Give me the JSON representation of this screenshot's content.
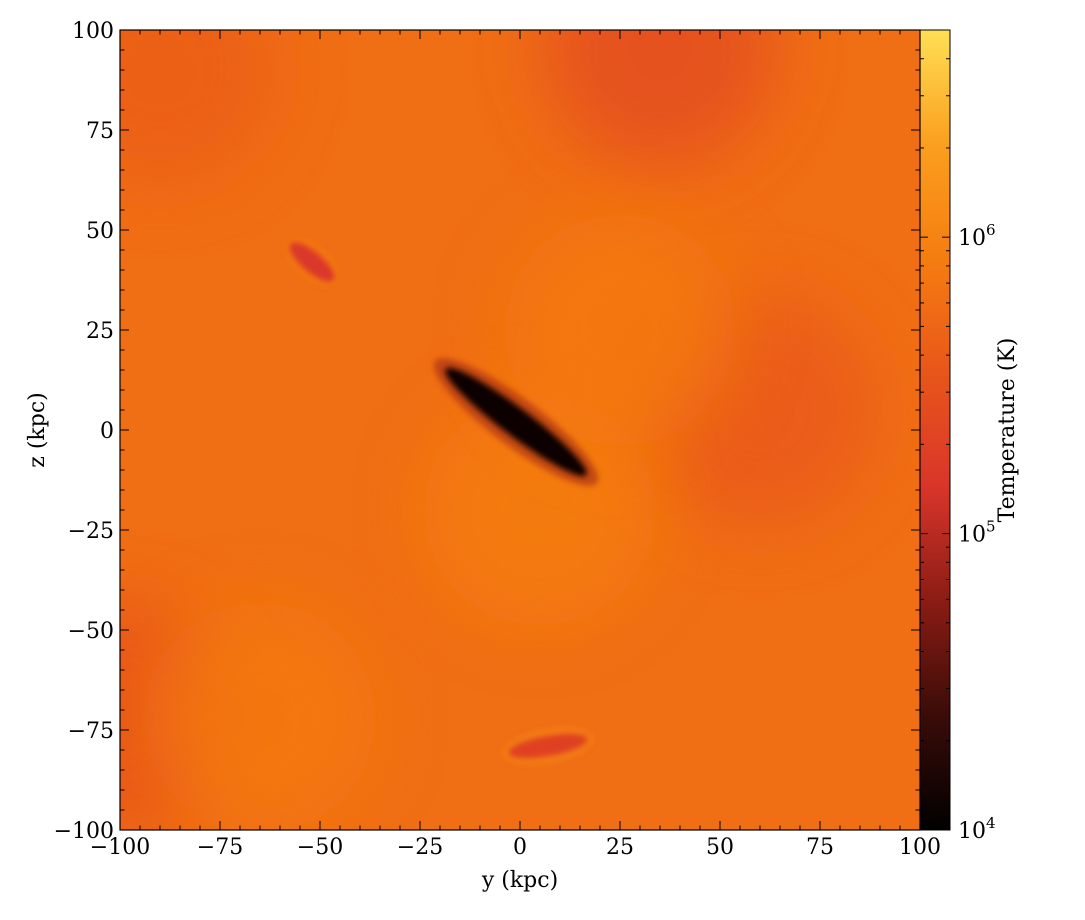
{
  "chart_data": {
    "type": "heatmap",
    "title": "",
    "xlabel": "y  (kpc)",
    "ylabel": "z  (kpc)",
    "xlim": [
      -100,
      100
    ],
    "ylim": [
      -100,
      100
    ],
    "xticks": [
      -100,
      -75,
      -50,
      -25,
      0,
      25,
      50,
      75,
      100
    ],
    "yticks": [
      -100,
      -75,
      -50,
      -25,
      0,
      25,
      50,
      75,
      100
    ],
    "xtick_labels": [
      "−100",
      "−75",
      "−50",
      "−25",
      "0",
      "25",
      "50",
      "75",
      "100"
    ],
    "ytick_labels": [
      "−100",
      "−75",
      "−50",
      "−25",
      "0",
      "25",
      "50",
      "75",
      "100"
    ],
    "grid": false,
    "colorbar": {
      "label": "Temperature  (K)",
      "scale": "log",
      "range": [
        10000,
        5000000
      ],
      "ticks": [
        {
          "value": 10000,
          "base": "10",
          "exp": "4"
        },
        {
          "value": 100000,
          "base": "10",
          "exp": "5"
        },
        {
          "value": 1000000,
          "base": "10",
          "exp": "6"
        }
      ],
      "colors": [
        "#000000",
        "#3a0c08",
        "#8a1c14",
        "#d9352a",
        "#e8561a",
        "#f57d10",
        "#fb9f1e",
        "#ffdf55"
      ]
    },
    "background_temperature": 600000,
    "features": [
      {
        "name": "cold disk",
        "y_center": -1,
        "z_center": 2,
        "length": 44,
        "width": 7,
        "angle_deg": -37,
        "temperature": 12000
      },
      {
        "name": "cool filament",
        "y_center": -52,
        "z_center": 42,
        "length": 14,
        "width": 5,
        "angle_deg": -40,
        "temperature": 150000
      },
      {
        "name": "cool filament",
        "y_center": 7,
        "z_center": -79,
        "length": 20,
        "width": 5,
        "angle_deg": 10,
        "temperature": 200000
      }
    ],
    "warm_regions": [
      {
        "y": 35,
        "z": 95,
        "temperature": 250000
      },
      {
        "y": -100,
        "z": -72,
        "temperature": 300000
      },
      {
        "y": 60,
        "z": 5,
        "temperature": 350000
      },
      {
        "y": -90,
        "z": 90,
        "temperature": 400000
      }
    ],
    "hot_regions": [
      {
        "y": 5,
        "z": -20,
        "temperature": 900000
      },
      {
        "y": -65,
        "z": -72,
        "temperature": 800000
      },
      {
        "y": 25,
        "z": 25,
        "temperature": 800000
      }
    ]
  }
}
